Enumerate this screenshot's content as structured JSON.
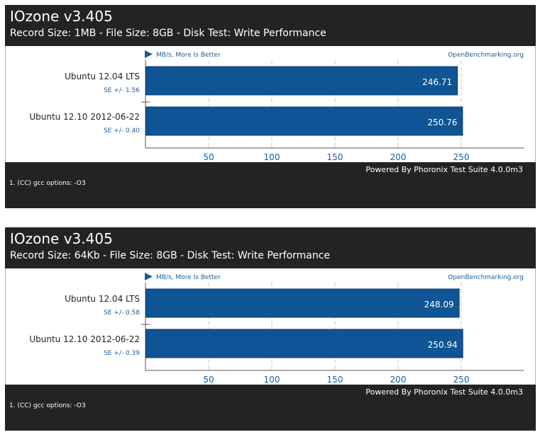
{
  "chart_data": [
    {
      "type": "bar",
      "orientation": "horizontal",
      "title": "IOzone v3.405",
      "subtitle": "Record Size: 1MB - File Size: 8GB - Disk Test: Write Performance",
      "unit_label": "MB/s, More Is Better",
      "brand": "OpenBenchmarking.org",
      "categories": [
        "Ubuntu 12.04 LTS",
        "Ubuntu 12.10 2012-06-22"
      ],
      "values": [
        246.71,
        250.76
      ],
      "value_labels": [
        "246.71",
        "250.76"
      ],
      "errors": [
        "SE +/- 1.56",
        "SE +/- 0.40"
      ],
      "xticks": [
        50,
        100,
        150,
        200,
        250
      ],
      "xlim": [
        0,
        298
      ],
      "grid": true,
      "footer_credit": "Powered By Phoronix Test Suite 4.0.0m3",
      "footer_note": "1. (CC) gcc options: -O3"
    },
    {
      "type": "bar",
      "orientation": "horizontal",
      "title": "IOzone v3.405",
      "subtitle": "Record Size: 64Kb - File Size: 8GB - Disk Test: Write Performance",
      "unit_label": "MB/s, More Is Better",
      "brand": "OpenBenchmarking.org",
      "categories": [
        "Ubuntu 12.04 LTS",
        "Ubuntu 12.10 2012-06-22"
      ],
      "values": [
        248.09,
        250.94
      ],
      "value_labels": [
        "248.09",
        "250.94"
      ],
      "errors": [
        "SE +/- 0.58",
        "SE +/- 0.39"
      ],
      "xticks": [
        50,
        100,
        150,
        200,
        250
      ],
      "xlim": [
        0,
        298
      ],
      "grid": true,
      "footer_credit": "Powered By Phoronix Test Suite 4.0.0m3",
      "footer_note": "1. (CC) gcc options: -O3"
    }
  ],
  "colors": {
    "bar": "#0f5494",
    "bar_border": "#0a3c6c",
    "header_bg": "#232323",
    "accent_text": "#1c5b96",
    "grid": "#c8c8c8"
  }
}
